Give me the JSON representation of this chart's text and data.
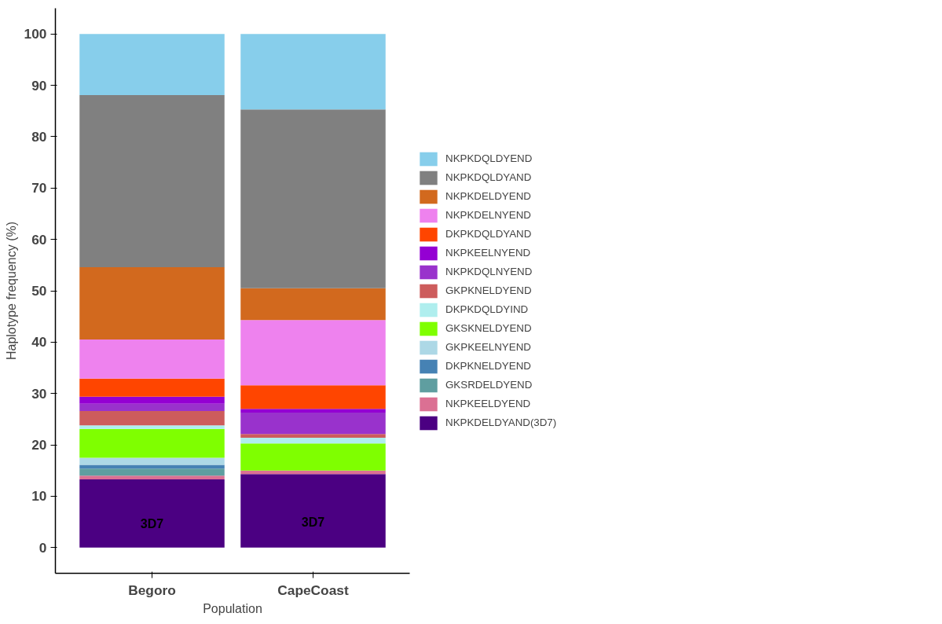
{
  "chart_data": {
    "type": "bar",
    "stacked": true,
    "xlabel": "Population",
    "ylabel": "Haplotype frequency (%)",
    "categories": [
      "Begoro",
      "CapeCoast"
    ],
    "ylim": [
      -5,
      105
    ],
    "yticks": [
      0,
      10,
      20,
      30,
      40,
      50,
      60,
      70,
      80,
      90,
      100
    ],
    "grid": false,
    "legend": "right",
    "annotations": [
      "3D7",
      "3D7"
    ],
    "series": [
      {
        "name": "NKPKDELDYAND(3D7)",
        "color": "#4b0082",
        "values": [
          13.3,
          14.3
        ]
      },
      {
        "name": "NKPKEELDYEND",
        "color": "#db7093",
        "values": [
          0.7,
          0.7
        ]
      },
      {
        "name": "GKSRDELDYEND",
        "color": "#5f9ea0",
        "values": [
          1.4,
          0
        ]
      },
      {
        "name": "DKPKNELDYEND",
        "color": "#4682b4",
        "values": [
          0.7,
          0
        ]
      },
      {
        "name": "GKPKEELNYEND",
        "color": "#add8e6",
        "values": [
          1.4,
          0
        ]
      },
      {
        "name": "GKSKNELDYEND",
        "color": "#7fff00",
        "values": [
          5.6,
          5.3
        ]
      },
      {
        "name": "DKPKDQLDYIND",
        "color": "#afeeee",
        "values": [
          0.7,
          1.1
        ]
      },
      {
        "name": "GKPKNELDYEND",
        "color": "#cd5c5c",
        "values": [
          2.8,
          0.7
        ]
      },
      {
        "name": "NKPKDQLNYEND",
        "color": "#9932cc",
        "values": [
          1.4,
          4.2
        ]
      },
      {
        "name": "NKPKEELNYEND",
        "color": "#9400d3",
        "values": [
          1.4,
          0.7
        ]
      },
      {
        "name": "DKPKDQLDYAND",
        "color": "#ff4500",
        "values": [
          3.5,
          4.6
        ]
      },
      {
        "name": "NKPKDELNYEND",
        "color": "#ee82ee",
        "values": [
          7.6,
          12.7
        ]
      },
      {
        "name": "NKPKDELDYEND",
        "color": "#d2691e",
        "values": [
          14.1,
          6.2
        ]
      },
      {
        "name": "NKPKDQLDYAND",
        "color": "#808080",
        "values": [
          33.5,
          34.8
        ]
      },
      {
        "name": "NKPKDQLDYEND",
        "color": "#87ceeb",
        "values": [
          11.9,
          14.7
        ]
      }
    ]
  }
}
